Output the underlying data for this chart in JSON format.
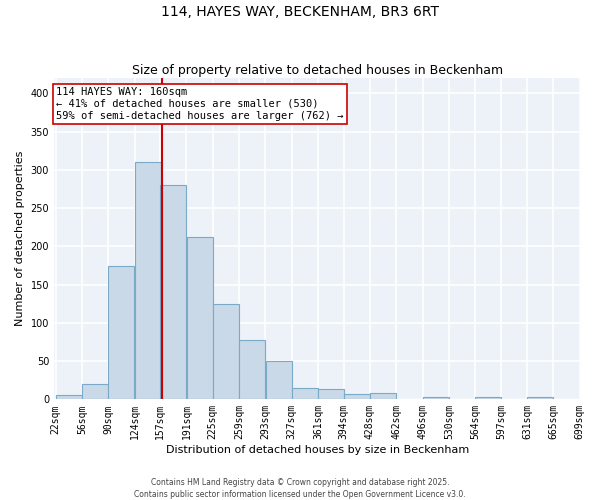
{
  "title": "114, HAYES WAY, BECKENHAM, BR3 6RT",
  "subtitle": "Size of property relative to detached houses in Beckenham",
  "xlabel": "Distribution of detached houses by size in Beckenham",
  "ylabel": "Number of detached properties",
  "bins": [
    22,
    56,
    90,
    124,
    157,
    191,
    225,
    259,
    293,
    327,
    361,
    394,
    428,
    462,
    496,
    530,
    564,
    597,
    631,
    665,
    699
  ],
  "bar_heights": [
    6,
    20,
    175,
    310,
    280,
    212,
    125,
    78,
    50,
    15,
    13,
    7,
    8,
    0,
    3,
    0,
    3,
    0,
    3,
    0
  ],
  "bar_facecolor": "#c9d9e8",
  "bar_edgecolor": "#7aaac8",
  "bar_linewidth": 0.8,
  "vline_x": 160,
  "vline_color": "#cc0000",
  "vline_linewidth": 1.5,
  "annotation_title": "114 HAYES WAY: 160sqm",
  "annotation_line2": "← 41% of detached houses are smaller (530)",
  "annotation_line3": "59% of semi-detached houses are larger (762) →",
  "annotation_box_edgecolor": "#cc0000",
  "annotation_box_facecolor": "white",
  "ylim": [
    0,
    420
  ],
  "yticks": [
    0,
    50,
    100,
    150,
    200,
    250,
    300,
    350,
    400
  ],
  "background_color": "#edf2f8",
  "grid_color": "white",
  "footer_line1": "Contains HM Land Registry data © Crown copyright and database right 2025.",
  "footer_line2": "Contains public sector information licensed under the Open Government Licence v3.0.",
  "title_fontsize": 10,
  "subtitle_fontsize": 9,
  "tick_label_fontsize": 7,
  "ylabel_fontsize": 8,
  "xlabel_fontsize": 8,
  "annotation_fontsize": 7.5,
  "footer_fontsize": 5.5
}
